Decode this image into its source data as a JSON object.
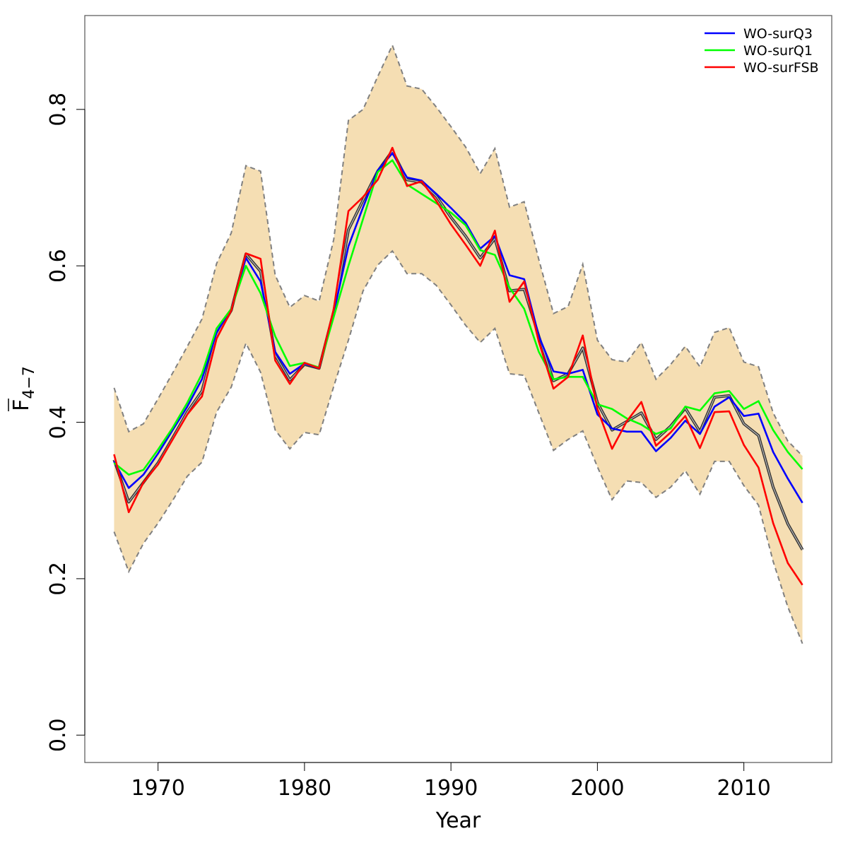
{
  "chart_data": {
    "type": "line",
    "title": "",
    "xlabel": "Year",
    "ylabel": {
      "base": "F",
      "subscript": "4−7"
    },
    "xlim": [
      1965,
      2016
    ],
    "ylim": [
      -0.035,
      0.92
    ],
    "xticks": [
      1970,
      1980,
      1990,
      2000,
      2010
    ],
    "yticks": [
      0.0,
      0.2,
      0.4,
      0.6,
      0.8
    ],
    "ytick_labels": [
      "0.0",
      "0.2",
      "0.4",
      "0.6",
      "0.8"
    ],
    "xtick_labels": [
      "1970",
      "1980",
      "1990",
      "2000",
      "2010"
    ],
    "grid": false,
    "legend_position": "top-right",
    "x": [
      1967,
      1968,
      1969,
      1970,
      1971,
      1972,
      1973,
      1974,
      1975,
      1976,
      1977,
      1978,
      1979,
      1980,
      1981,
      1982,
      1983,
      1984,
      1985,
      1986,
      1987,
      1988,
      1989,
      1990,
      1991,
      1992,
      1993,
      1994,
      1995,
      1996,
      1997,
      1998,
      1999,
      2000,
      2001,
      2002,
      2003,
      2004,
      2005,
      2006,
      2007,
      2008,
      2009,
      2010,
      2011,
      2012,
      2013,
      2014
    ],
    "band": {
      "color": "#f5deb3",
      "edge_color": "#808080",
      "upper": [
        0.444,
        0.388,
        0.398,
        0.43,
        0.463,
        0.497,
        0.532,
        0.603,
        0.642,
        0.728,
        0.721,
        0.588,
        0.547,
        0.562,
        0.555,
        0.634,
        0.786,
        0.8,
        0.842,
        0.882,
        0.83,
        0.826,
        0.803,
        0.778,
        0.752,
        0.718,
        0.75,
        0.675,
        0.682,
        0.608,
        0.539,
        0.548,
        0.602,
        0.505,
        0.48,
        0.477,
        0.502,
        0.455,
        0.474,
        0.497,
        0.471,
        0.515,
        0.521,
        0.477,
        0.471,
        0.412,
        0.376,
        0.357
      ],
      "lower": [
        0.26,
        0.209,
        0.245,
        0.271,
        0.3,
        0.331,
        0.349,
        0.413,
        0.445,
        0.501,
        0.464,
        0.39,
        0.366,
        0.387,
        0.384,
        0.446,
        0.505,
        0.568,
        0.601,
        0.619,
        0.59,
        0.59,
        0.575,
        0.55,
        0.524,
        0.502,
        0.52,
        0.462,
        0.46,
        0.412,
        0.364,
        0.378,
        0.389,
        0.343,
        0.301,
        0.325,
        0.323,
        0.304,
        0.317,
        0.338,
        0.308,
        0.35,
        0.35,
        0.319,
        0.294,
        0.222,
        0.164,
        0.117
      ]
    },
    "central": {
      "color": "#555555",
      "values": [
        0.352,
        0.298,
        0.323,
        0.348,
        0.38,
        0.413,
        0.44,
        0.511,
        0.543,
        0.615,
        0.593,
        0.486,
        0.454,
        0.474,
        0.469,
        0.542,
        0.646,
        0.684,
        0.721,
        0.747,
        0.71,
        0.707,
        0.689,
        0.662,
        0.638,
        0.61,
        0.635,
        0.568,
        0.57,
        0.51,
        0.453,
        0.462,
        0.495,
        0.425,
        0.39,
        0.401,
        0.412,
        0.378,
        0.395,
        0.418,
        0.388,
        0.432,
        0.434,
        0.398,
        0.383,
        0.317,
        0.27,
        0.237
      ]
    },
    "series": [
      {
        "name": "WO-surQ3",
        "color": "#0000ff",
        "values": [
          0.35,
          0.316,
          0.333,
          0.36,
          0.39,
          0.42,
          0.455,
          0.515,
          0.545,
          0.61,
          0.58,
          0.49,
          0.462,
          0.475,
          0.469,
          0.54,
          0.625,
          0.675,
          0.722,
          0.744,
          0.713,
          0.709,
          0.692,
          0.674,
          0.655,
          0.622,
          0.638,
          0.588,
          0.583,
          0.51,
          0.465,
          0.462,
          0.467,
          0.41,
          0.392,
          0.388,
          0.388,
          0.363,
          0.38,
          0.402,
          0.385,
          0.42,
          0.432,
          0.408,
          0.411,
          0.362,
          0.328,
          0.297
        ]
      },
      {
        "name": "WO-surQ1",
        "color": "#00ff00",
        "values": [
          0.348,
          0.333,
          0.339,
          0.365,
          0.393,
          0.425,
          0.462,
          0.52,
          0.545,
          0.6,
          0.565,
          0.51,
          0.472,
          0.476,
          0.47,
          0.535,
          0.6,
          0.66,
          0.72,
          0.735,
          0.704,
          0.692,
          0.68,
          0.668,
          0.652,
          0.62,
          0.614,
          0.572,
          0.545,
          0.49,
          0.455,
          0.458,
          0.458,
          0.423,
          0.417,
          0.405,
          0.397,
          0.385,
          0.392,
          0.42,
          0.415,
          0.437,
          0.44,
          0.417,
          0.427,
          0.39,
          0.362,
          0.34
        ]
      },
      {
        "name": "WO-surFSB",
        "color": "#ff0000",
        "values": [
          0.359,
          0.285,
          0.323,
          0.346,
          0.378,
          0.41,
          0.433,
          0.507,
          0.543,
          0.616,
          0.609,
          0.479,
          0.449,
          0.476,
          0.469,
          0.545,
          0.67,
          0.688,
          0.71,
          0.751,
          0.702,
          0.708,
          0.683,
          0.653,
          0.627,
          0.6,
          0.645,
          0.554,
          0.58,
          0.503,
          0.443,
          0.458,
          0.511,
          0.417,
          0.366,
          0.401,
          0.426,
          0.37,
          0.387,
          0.408,
          0.367,
          0.413,
          0.414,
          0.371,
          0.342,
          0.271,
          0.22,
          0.192
        ]
      }
    ]
  }
}
